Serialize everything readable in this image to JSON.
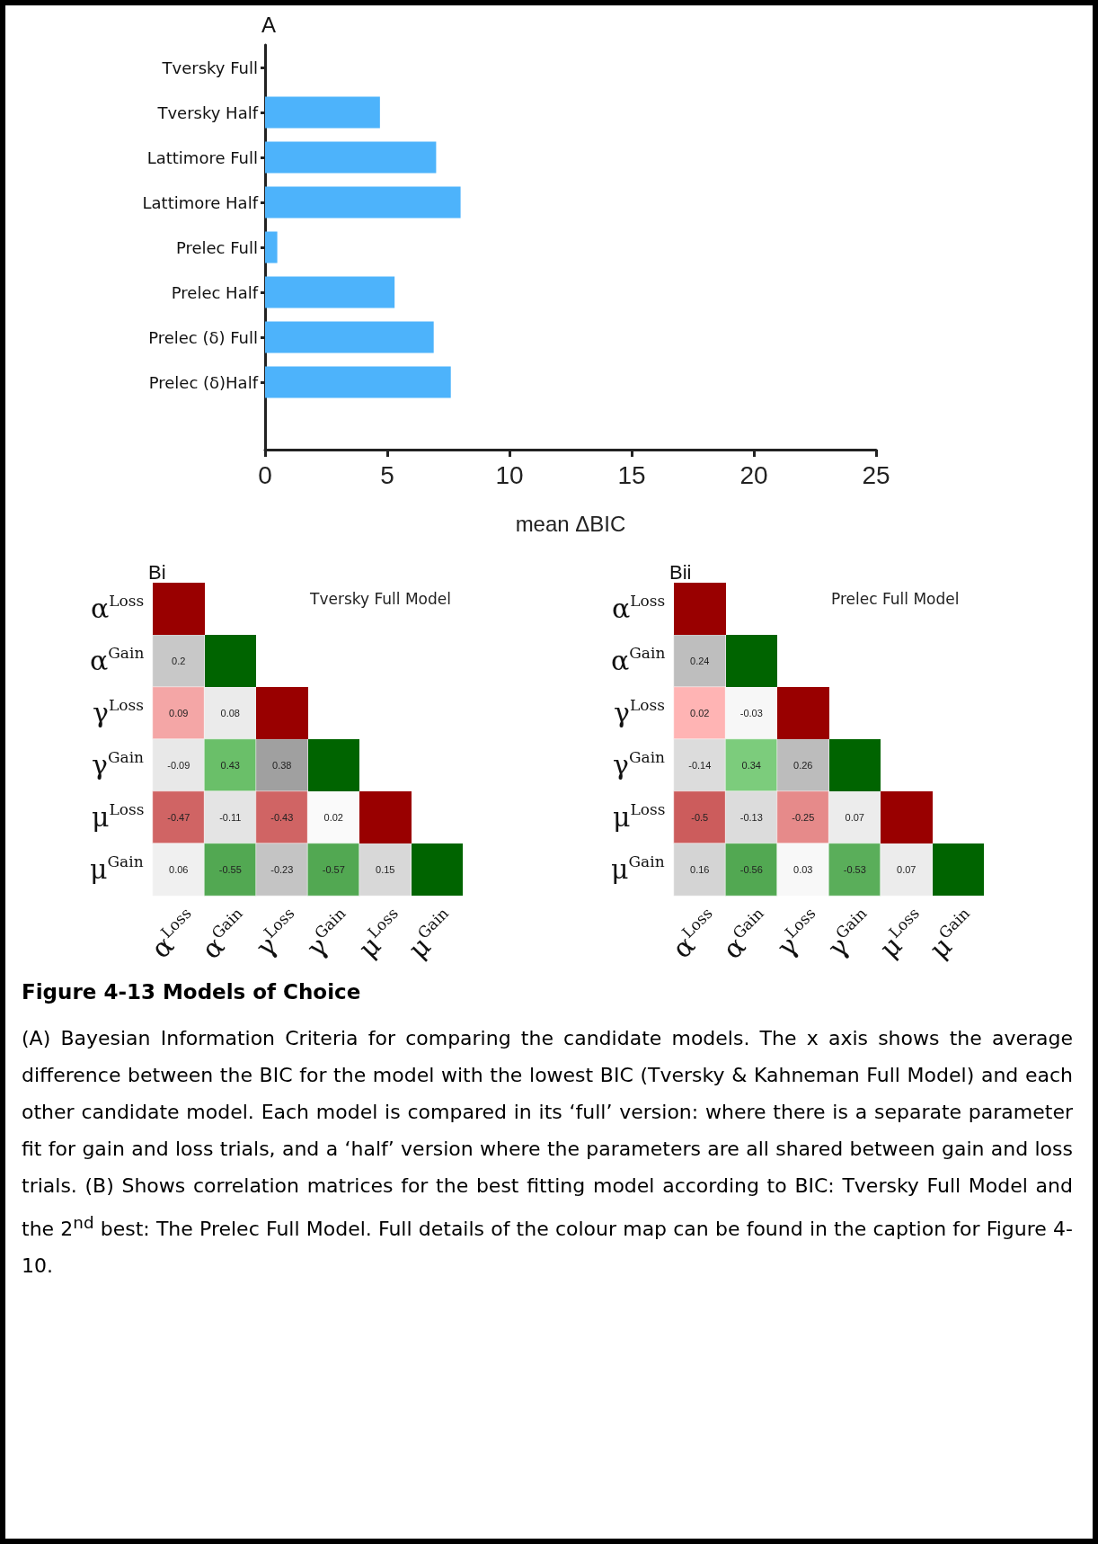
{
  "chart_data": [
    {
      "type": "bar",
      "title": "A",
      "orientation": "horizontal",
      "xlabel": "mean ΔBIC",
      "color": "#4db3fb",
      "categories": [
        "Tversky Full",
        "Tversky Half",
        "Lattimore Full",
        "Lattimore Half",
        "Prelec Full",
        "Prelec Half",
        "Prelec (δ) Full",
        "Prelec (δ)Half"
      ],
      "values": [
        0,
        4.7,
        7.0,
        8.0,
        0.5,
        5.3,
        6.9,
        7.6
      ],
      "xlim": [
        0,
        25
      ],
      "xticks": [
        0,
        5,
        10,
        15,
        20,
        25
      ]
    },
    {
      "type": "heatmap",
      "title": "Bi",
      "subtitle": "Tversky Full Model",
      "data_labels": true,
      "categories": [
        "α$^{Loss}$",
        "α$^{Gain}$",
        "γ$^{Loss}$",
        "γ$^{Gain}$",
        "μ$^{Loss}$",
        "μ$^{Gain}$"
      ],
      "y_categories": [
        "α$^{Loss}$",
        "α$^{Gain}$",
        "γ$^{Loss}$",
        "γ$^{Gain}$",
        "μ$^{Loss}$",
        "μ$^{Gain}$"
      ],
      "cells": [
        [
          null,
          null,
          null,
          null,
          null,
          null
        ],
        [
          0.2,
          null,
          null,
          null,
          null,
          null
        ],
        [
          0.09,
          0.08,
          null,
          null,
          null,
          null
        ],
        [
          -0.09,
          0.43,
          0.38,
          null,
          null,
          null
        ],
        [
          -0.47,
          -0.11,
          -0.43,
          0.02,
          null,
          null
        ],
        [
          0.06,
          -0.55,
          -0.23,
          -0.57,
          0.15,
          null
        ]
      ],
      "colors": [
        [
          "#990000",
          null,
          null,
          null,
          null,
          null
        ],
        [
          "#c8c8c8",
          "#006400",
          null,
          null,
          null,
          null
        ],
        [
          "#f4a6a6",
          "#ebebeb",
          "#990000",
          null,
          null,
          null
        ],
        [
          "#e8e8e8",
          "#6abf69",
          "#a0a0a0",
          "#006400",
          null,
          null
        ],
        [
          "#d06464",
          "#e4e4e4",
          "#d06464",
          "#fafafa",
          "#990000",
          null
        ],
        [
          "#f0f0f0",
          "#52a852",
          "#c4c4c4",
          "#52a852",
          "#d8d8d8",
          "#006400"
        ]
      ]
    },
    {
      "type": "heatmap",
      "title": "Bii",
      "subtitle": "Prelec Full Model",
      "data_labels": true,
      "categories": [
        "α$^{Loss}$",
        "α$^{Gain}$",
        "γ$^{Loss}$",
        "γ$^{Gain}$",
        "μ$^{Loss}$",
        "μ$^{Gain}$"
      ],
      "y_categories": [
        "α$^{Loss}$",
        "α$^{Gain}$",
        "γ$^{Loss}$",
        "γ$^{Gain}$",
        "μ$^{Loss}$",
        "μ$^{Gain}$"
      ],
      "cells": [
        [
          null,
          null,
          null,
          null,
          null,
          null
        ],
        [
          0.24,
          null,
          null,
          null,
          null,
          null
        ],
        [
          0.02,
          -0.03,
          null,
          null,
          null,
          null
        ],
        [
          -0.14,
          0.34,
          0.26,
          null,
          null,
          null
        ],
        [
          -0.5,
          -0.13,
          -0.25,
          0.07,
          null,
          null
        ],
        [
          0.16,
          -0.56,
          0.03,
          -0.53,
          0.07,
          null
        ]
      ],
      "colors": [
        [
          "#990000",
          null,
          null,
          null,
          null,
          null
        ],
        [
          "#bebebe",
          "#006400",
          null,
          null,
          null,
          null
        ],
        [
          "#ffb4b4",
          "#f7f7f7",
          "#990000",
          null,
          null,
          null
        ],
        [
          "#dcdcdc",
          "#7ccc7c",
          "#bcbcbc",
          "#006400",
          null,
          null
        ],
        [
          "#cc5c5c",
          "#dcdcdc",
          "#e68a8a",
          "#ececec",
          "#990000",
          null
        ],
        [
          "#d4d4d4",
          "#52a852",
          "#f8f8f8",
          "#5aae5a",
          "#ececec",
          "#006400"
        ]
      ]
    },
    {
      "type": "other",
      "title": "Figure 4-13 Models of Choice",
      "annotations": [
        "(A) Bayesian Information Criteria for comparing the candidate models. The x axis shows the average difference between the BIC for the model with the lowest BIC (Tversky & Kahneman Full Model) and each other candidate model. Each model is compared in its ‘full’ version: where there is a separate parameter fit for gain and loss trials, and a ‘half’ version where the parameters are all shared between gain and loss trials. (B) Shows correlation matrices for the best fitting model according to BIC: Tversky Full Model and the 2$^{nd}$ best: The Prelec Full Model. Full details of the colour map can be found in the caption for Figure 4-10."
      ]
    }
  ]
}
